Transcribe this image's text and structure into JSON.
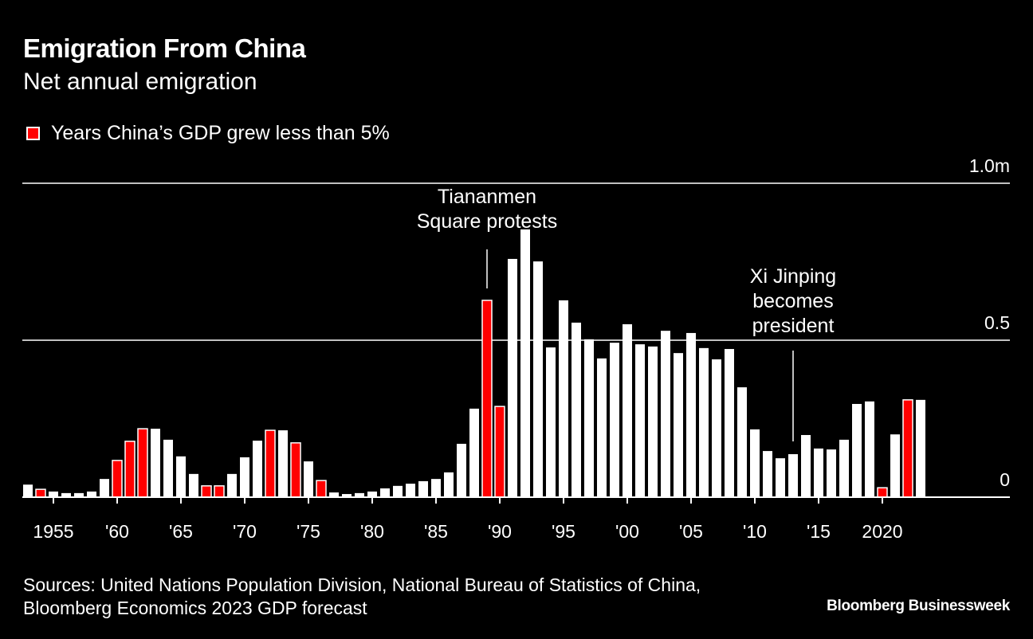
{
  "header": {
    "title": "Emigration From China",
    "subtitle": "Net annual emigration"
  },
  "legend": {
    "label": "Years China’s GDP grew less than 5%",
    "color": "#ff0000"
  },
  "footer": {
    "source_line1": "Sources: United Nations Population Division, National Bureau of Statistics of China,",
    "source_line2": "Bloomberg Economics 2023 GDP forecast",
    "brand": "Bloomberg Businessweek"
  },
  "chart_data": {
    "type": "bar",
    "title": "Emigration From China",
    "subtitle": "Net annual emigration",
    "ylim": [
      0,
      1.0
    ],
    "y_unit": "million",
    "y_ticks": [
      {
        "value": 0,
        "label": "0"
      },
      {
        "value": 0.5,
        "label": "0.5"
      },
      {
        "value": 1.0,
        "label": "1.0m"
      }
    ],
    "x_ticks": [
      {
        "year": 1955,
        "label": "1955"
      },
      {
        "year": 1960,
        "label": "'60"
      },
      {
        "year": 1965,
        "label": "'65"
      },
      {
        "year": 1970,
        "label": "'70"
      },
      {
        "year": 1975,
        "label": "'75"
      },
      {
        "year": 1980,
        "label": "'80"
      },
      {
        "year": 1985,
        "label": "'85"
      },
      {
        "year": 1990,
        "label": "'90"
      },
      {
        "year": 1995,
        "label": "'95"
      },
      {
        "year": 2000,
        "label": "'00"
      },
      {
        "year": 2005,
        "label": "'05"
      },
      {
        "year": 2010,
        "label": "'10"
      },
      {
        "year": 2015,
        "label": "'15"
      },
      {
        "year": 2020,
        "label": "2020"
      }
    ],
    "grid": true,
    "colors": {
      "normal": "#ffffff",
      "low_growth": "#ff0000",
      "background": "#000000"
    },
    "years": [
      1953,
      1954,
      1955,
      1956,
      1957,
      1958,
      1959,
      1960,
      1961,
      1962,
      1963,
      1964,
      1965,
      1966,
      1967,
      1968,
      1969,
      1970,
      1971,
      1972,
      1973,
      1974,
      1975,
      1976,
      1977,
      1978,
      1979,
      1980,
      1981,
      1982,
      1983,
      1984,
      1985,
      1986,
      1987,
      1988,
      1989,
      1990,
      1991,
      1992,
      1993,
      1994,
      1995,
      1996,
      1997,
      1998,
      1999,
      2000,
      2001,
      2002,
      2003,
      2004,
      2005,
      2006,
      2007,
      2008,
      2009,
      2010,
      2011,
      2012,
      2013,
      2014,
      2015,
      2016,
      2017,
      2018,
      2019,
      2020,
      2021,
      2022,
      2023
    ],
    "values": [
      0.04,
      0.025,
      0.018,
      0.013,
      0.013,
      0.018,
      0.058,
      0.117,
      0.178,
      0.218,
      0.218,
      0.183,
      0.13,
      0.074,
      0.036,
      0.036,
      0.074,
      0.127,
      0.18,
      0.213,
      0.213,
      0.173,
      0.114,
      0.053,
      0.015,
      0.01,
      0.013,
      0.018,
      0.028,
      0.036,
      0.043,
      0.051,
      0.058,
      0.079,
      0.17,
      0.282,
      0.627,
      0.289,
      0.759,
      0.853,
      0.751,
      0.477,
      0.627,
      0.556,
      0.503,
      0.442,
      0.492,
      0.551,
      0.487,
      0.48,
      0.53,
      0.459,
      0.523,
      0.475,
      0.439,
      0.472,
      0.35,
      0.216,
      0.147,
      0.124,
      0.137,
      0.198,
      0.155,
      0.152,
      0.183,
      0.297,
      0.305,
      0.03,
      0.2,
      0.31,
      0.31
    ],
    "low_growth_years": [
      1954,
      1960,
      1961,
      1962,
      1967,
      1968,
      1972,
      1974,
      1976,
      1989,
      1990,
      2020,
      2022
    ],
    "annotations": [
      {
        "year": 1989,
        "lines": [
          "Tiananmen",
          "Square protests"
        ]
      },
      {
        "year": 2013,
        "lines": [
          "Xi Jinping",
          "becomes",
          "president"
        ]
      }
    ]
  }
}
